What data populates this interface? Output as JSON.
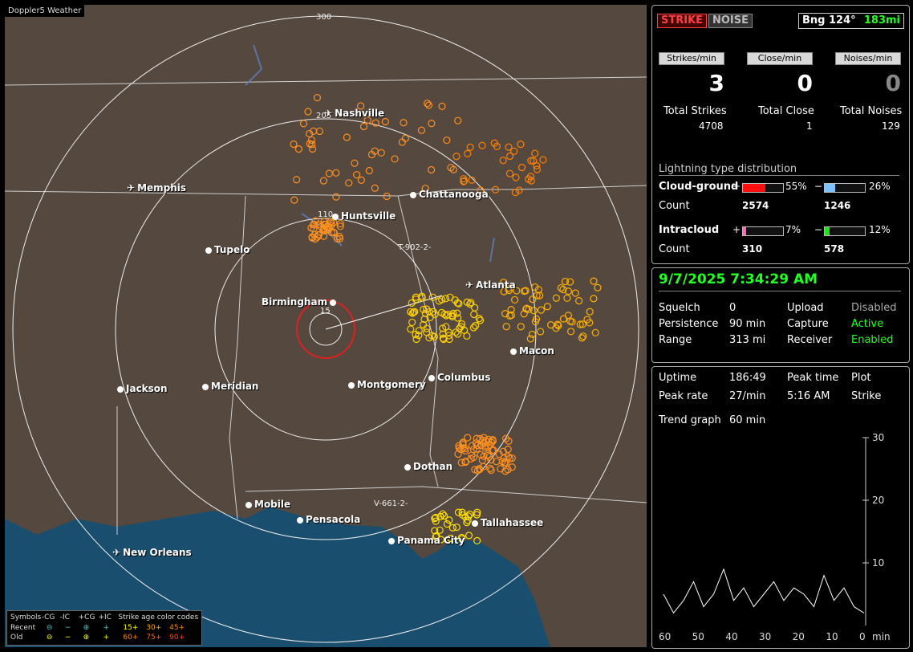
{
  "map": {
    "app_title": "Doppler5 Weather",
    "cities": [
      {
        "name": "Nashville",
        "x": 398,
        "y": 128,
        "icon": "plane"
      },
      {
        "name": "Memphis",
        "x": 152,
        "y": 221,
        "icon": "plane"
      },
      {
        "name": "Chattanooga",
        "x": 505,
        "y": 229,
        "icon": "dot"
      },
      {
        "name": "Huntsville",
        "x": 408,
        "y": 256,
        "icon": "dot"
      },
      {
        "name": "Tupelo",
        "x": 250,
        "y": 298,
        "icon": "dot"
      },
      {
        "name": "Atlanta",
        "x": 574,
        "y": 342,
        "icon": "plane"
      },
      {
        "name": "Birmingham",
        "x": 320,
        "y": 363,
        "icon": "dot-right"
      },
      {
        "name": "Macon",
        "x": 630,
        "y": 424,
        "icon": "dot"
      },
      {
        "name": "Jackson",
        "x": 140,
        "y": 471,
        "icon": "dot"
      },
      {
        "name": "Meridian",
        "x": 246,
        "y": 468,
        "icon": "dot"
      },
      {
        "name": "Montgomery",
        "x": 428,
        "y": 466,
        "icon": "dot"
      },
      {
        "name": "Columbus",
        "x": 528,
        "y": 457,
        "icon": "dot"
      },
      {
        "name": "Dothan",
        "x": 498,
        "y": 568,
        "icon": "dot"
      },
      {
        "name": "Mobile",
        "x": 300,
        "y": 615,
        "icon": "dot"
      },
      {
        "name": "Pensacola",
        "x": 364,
        "y": 634,
        "icon": "dot"
      },
      {
        "name": "Tallahassee",
        "x": 582,
        "y": 638,
        "icon": "dot"
      },
      {
        "name": "Panama City",
        "x": 478,
        "y": 660,
        "icon": "dot"
      },
      {
        "name": "New Orleans",
        "x": 134,
        "y": 675,
        "icon": "plane"
      }
    ],
    "range_labels": [
      "300",
      "205",
      "110",
      "15"
    ],
    "tracks": [
      "T-902-2-",
      "V-661-2-"
    ],
    "legend": {
      "symbols_label": "Symbols",
      "cols": [
        "-CG",
        "-IC",
        "+CG",
        "+IC"
      ],
      "age_label": "Strike age color codes",
      "recent_label": "Recent",
      "old_label": "Old",
      "recent_ages": [
        "15+",
        "30+",
        "45+"
      ],
      "old_ages": [
        "60+",
        "75+",
        "90+"
      ]
    }
  },
  "status": {
    "strike_tab": "STRIKE",
    "noise_tab": "NOISE",
    "bearing": "Bng 124°",
    "distance": "183mi",
    "strikes_min_label": "Strikes/min",
    "close_min_label": "Close/min",
    "noises_min_label": "Noises/min",
    "strikes_min": "3",
    "close_min": "0",
    "noises_min": "0",
    "total_strikes_label": "Total Strikes",
    "total_close_label": "Total Close",
    "total_noises_label": "Total Noises",
    "total_strikes": "4708",
    "total_close": "1",
    "total_noises": "129",
    "dist_title": "Lightning type distribution",
    "cg_label": "Cloud-ground",
    "ic_label": "Intracloud",
    "count_label": "Count",
    "plus": "+",
    "minus": "−",
    "cg_pos_pct": "55%",
    "cg_neg_pct": "26%",
    "ic_pos_pct": "7%",
    "ic_neg_pct": "12%",
    "cg_pos_count": "2574",
    "cg_neg_count": "1246",
    "ic_pos_count": "310",
    "ic_neg_count": "578",
    "cg_pos_frac": 0.55,
    "cg_neg_frac": 0.26,
    "ic_pos_frac": 0.07,
    "ic_neg_frac": 0.12
  },
  "settings": {
    "datetime": "9/7/2025 7:34:29 AM",
    "squelch_label": "Squelch",
    "squelch": "0",
    "persistence_label": "Persistence",
    "persistence": "90 min",
    "range_label": "Range",
    "range": "313 mi",
    "upload_label": "Upload",
    "upload": "Disabled",
    "capture_label": "Capture",
    "capture": "Active",
    "receiver_label": "Receiver",
    "receiver": "Enabled"
  },
  "stats": {
    "uptime_label": "Uptime",
    "uptime": "186:49",
    "peak_time_label": "Peak time",
    "plot_label": "Plot",
    "peak_rate_label": "Peak rate",
    "peak_rate": "27/min",
    "peak_time": "5:16 AM",
    "plot": "Strike",
    "trend_label": "Trend graph",
    "trend": "60 min",
    "y_ticks": [
      "30",
      "20",
      "10"
    ],
    "x_ticks": [
      "60",
      "50",
      "40",
      "30",
      "20",
      "10",
      "0"
    ],
    "x_unit": "min"
  },
  "chart_data": {
    "type": "line",
    "x": [
      60,
      57,
      54,
      51,
      48,
      45,
      42,
      39,
      36,
      33,
      30,
      27,
      24,
      21,
      18,
      15,
      12,
      9,
      6,
      3,
      0
    ],
    "series": [
      {
        "values": [
          5,
          2,
          4,
          7,
          3,
          5,
          9,
          4,
          6,
          3,
          5,
          7,
          4,
          6,
          5,
          3,
          8,
          4,
          6,
          3,
          2
        ]
      }
    ],
    "ylim": [
      0,
      30
    ],
    "xlim": [
      60,
      0
    ]
  }
}
